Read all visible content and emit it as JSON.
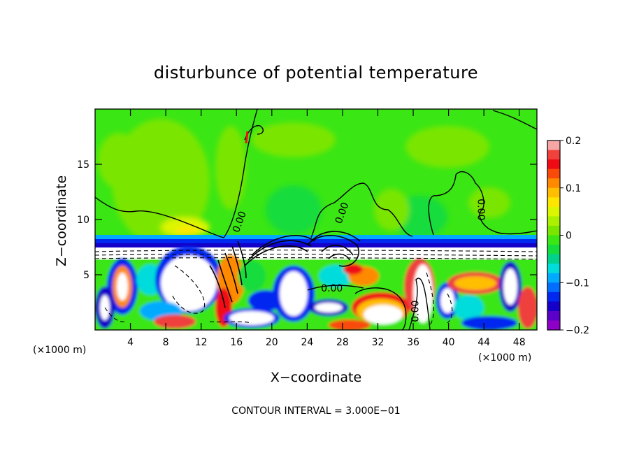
{
  "chart_data": {
    "type": "heatmap",
    "title": "disturbunce of potential temperature",
    "xlabel": "X−coordinate",
    "ylabel": "Z−coordinate",
    "x_unit": "(×1000 m)",
    "x_unit_right": "(×1000 m)",
    "x_ticks": [
      4,
      8,
      12,
      16,
      20,
      24,
      28,
      32,
      36,
      40,
      44,
      48
    ],
    "y_ticks": [
      5,
      10,
      15
    ],
    "xlim": [
      0,
      50
    ],
    "ylim": [
      0,
      20
    ],
    "colorbar": {
      "range": [
        -0.2,
        0.2
      ],
      "tick_values": [
        0.2,
        0.1,
        0,
        -0.1,
        -0.2
      ],
      "tick_labels": [
        "0.2",
        "0.1",
        "0",
        "−0.1",
        "−0.2"
      ],
      "colors": [
        "#f7a6a6",
        "#f0413c",
        "#f00a14",
        "#fa4a0a",
        "#ff8a00",
        "#ffbe00",
        "#ffe600",
        "#dcf500",
        "#aaf000",
        "#7ae600",
        "#3ae614",
        "#14dc3c",
        "#00d28c",
        "#00dcdc",
        "#00aaff",
        "#006eff",
        "#0028f0",
        "#1400c8",
        "#5a00c8",
        "#8c00c8"
      ]
    },
    "contour_labels": [
      {
        "text": "0.00",
        "x": 16.3,
        "y": 9.8,
        "rotate": -70
      },
      {
        "text": "0.00",
        "x": 27.9,
        "y": 10.6,
        "rotate": -70
      },
      {
        "text": "0.00",
        "x": 43.7,
        "y": 10.9,
        "rotate": 90
      },
      {
        "text": "0.00",
        "x": 26.8,
        "y": 3.8,
        "rotate": 0
      },
      {
        "text": "0.00",
        "x": 36.2,
        "y": 1.7,
        "rotate": -90
      }
    ],
    "contour_interval_text": "CONTOUR INTERVAL = 3.000E−01"
  }
}
